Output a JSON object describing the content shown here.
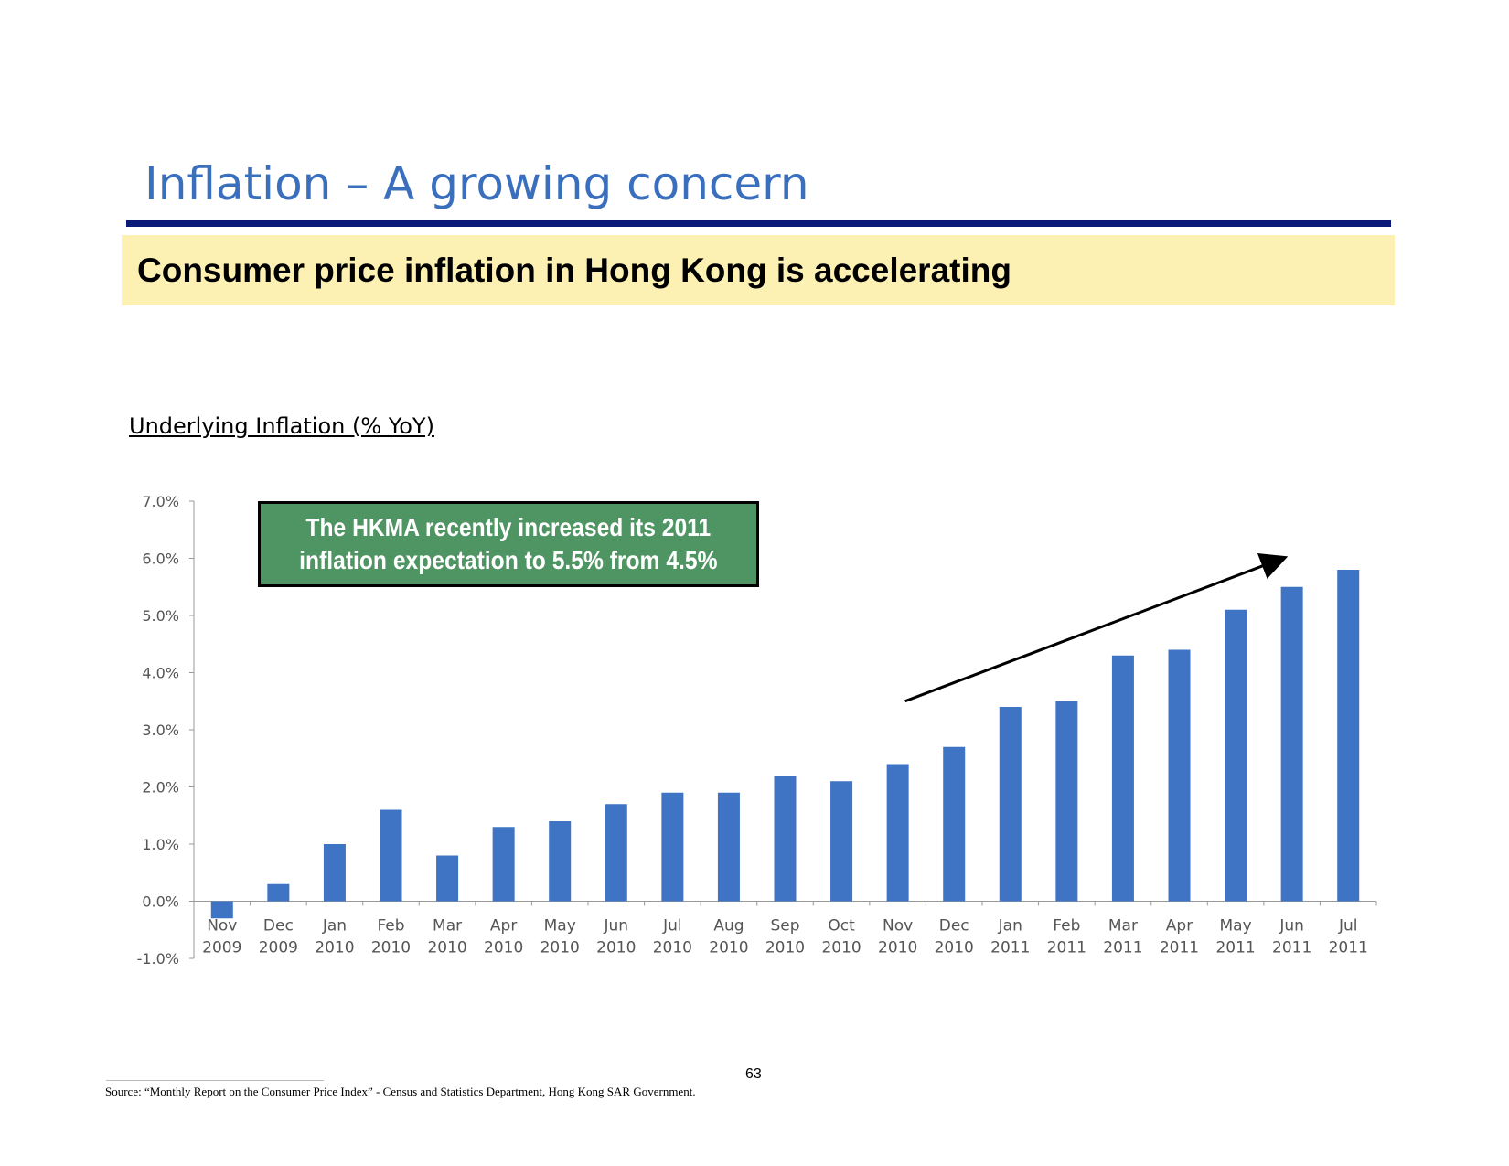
{
  "slide": {
    "title": "Inflation – A growing concern",
    "banner": "Consumer price inflation in Hong Kong is accelerating",
    "page_number": "63",
    "source": "Source: “Monthly Report on the Consumer Price Index” - Census and Statistics Department, Hong Kong SAR Government."
  },
  "callout": {
    "text": "The HKMA recently increased its 2011\ninflation expectation to 5.5% from 4.5%"
  },
  "colors": {
    "title": "#3a6fbd",
    "rule": "#0a1a78",
    "banner_bg": "#fdf0b3",
    "bar": "#3f73c4",
    "callout_bg": "#4f9463"
  },
  "chart_data": {
    "type": "bar",
    "title": "Underlying Inflation (% YoY)",
    "categories": [
      [
        "Nov",
        "2009"
      ],
      [
        "Dec",
        "2009"
      ],
      [
        "Jan",
        "2010"
      ],
      [
        "Feb",
        "2010"
      ],
      [
        "Mar",
        "2010"
      ],
      [
        "Apr",
        "2010"
      ],
      [
        "May",
        "2010"
      ],
      [
        "Jun",
        "2010"
      ],
      [
        "Jul",
        "2010"
      ],
      [
        "Aug",
        "2010"
      ],
      [
        "Sep",
        "2010"
      ],
      [
        "Oct",
        "2010"
      ],
      [
        "Nov",
        "2010"
      ],
      [
        "Dec",
        "2010"
      ],
      [
        "Jan",
        "2011"
      ],
      [
        "Feb",
        "2011"
      ],
      [
        "Mar",
        "2011"
      ],
      [
        "Apr",
        "2011"
      ],
      [
        "May",
        "2011"
      ],
      [
        "Jun",
        "2011"
      ],
      [
        "Jul",
        "2011"
      ]
    ],
    "values": [
      -0.3,
      0.3,
      1.0,
      1.6,
      0.8,
      1.3,
      1.4,
      1.7,
      1.9,
      1.9,
      2.2,
      2.1,
      2.4,
      2.7,
      3.4,
      3.5,
      4.3,
      4.4,
      5.1,
      5.5,
      5.8
    ],
    "yticks": [
      "7.0%",
      "6.0%",
      "5.0%",
      "4.0%",
      "3.0%",
      "2.0%",
      "1.0%",
      "0.0%",
      "-1.0%"
    ],
    "ylim": [
      -1.0,
      7.0
    ],
    "grid": false,
    "legend": false,
    "annotation": {
      "type": "trend-arrow",
      "from": {
        "category": 12,
        "value": 3.5
      },
      "to": {
        "category": 19,
        "value": 6.0
      }
    }
  }
}
